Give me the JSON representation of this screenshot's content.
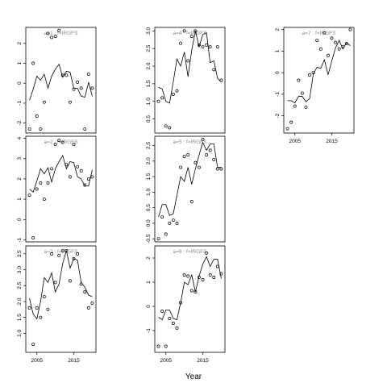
{
  "chart_data": {
    "type": "scatter",
    "xlabel": "Year",
    "x_ticks": [
      2005,
      2015
    ],
    "xlim": [
      2002,
      2021
    ],
    "panels": [
      {
        "title": "a=1 : f=IRGFS",
        "ylim": [
          -2.5,
          2.8
        ],
        "y_ticks": [
          -2,
          -1,
          0,
          1,
          2
        ],
        "line": {
          "x": [
            2003,
            2004,
            2005,
            2006,
            2007,
            2008,
            2009,
            2010,
            2011,
            2012,
            2013,
            2014,
            2015,
            2016,
            2017,
            2018,
            2019,
            2020
          ],
          "y": [
            -0.85,
            -0.3,
            0.35,
            0.15,
            0.45,
            -0.25,
            0.35,
            0.7,
            0.95,
            0.3,
            0.6,
            0.55,
            -0.25,
            -0.25,
            -0.65,
            -0.7,
            0.05,
            -0.65
          ]
        },
        "points": {
          "x": [
            2003,
            2004,
            2005,
            2006,
            2007,
            2008,
            2009,
            2010,
            2011,
            2012,
            2013,
            2014,
            2015,
            2016,
            2017,
            2018,
            2019,
            2020
          ],
          "y": [
            -2.3,
            1.0,
            -1.65,
            -2.3,
            -0.95,
            2.5,
            2.3,
            2.35,
            2.65,
            0.4,
            0.4,
            -0.95,
            -0.3,
            0.05,
            -0.25,
            -2.3,
            0.45,
            -0.25
          ]
        }
      },
      {
        "title": "a=4 : f=IRGFS",
        "ylim": [
          0.1,
          3.1
        ],
        "y_ticks": [
          0.5,
          1.0,
          1.5,
          2.0,
          2.5,
          3.0
        ],
        "line": {
          "x": [
            2003,
            2004,
            2005,
            2006,
            2007,
            2008,
            2009,
            2010,
            2011,
            2012,
            2013,
            2014,
            2015,
            2016,
            2017,
            2018,
            2019,
            2020
          ],
          "y": [
            1.4,
            1.35,
            1.0,
            0.95,
            1.55,
            2.2,
            2.0,
            2.4,
            1.7,
            2.45,
            3.0,
            2.55,
            2.9,
            2.95,
            2.1,
            2.15,
            1.65,
            1.55
          ]
        },
        "points": {
          "x": [
            2003,
            2004,
            2005,
            2006,
            2007,
            2008,
            2009,
            2010,
            2011,
            2012,
            2013,
            2014,
            2015,
            2016,
            2017,
            2018,
            2019,
            2020
          ],
          "y": [
            1.0,
            1.1,
            0.3,
            0.25,
            1.2,
            1.3,
            2.65,
            3.0,
            2.15,
            2.85,
            3.0,
            2.6,
            2.55,
            2.6,
            2.55,
            1.9,
            2.55,
            1.6
          ]
        }
      },
      {
        "title": "a=7 : f=IRGFS",
        "ylim": [
          -2.8,
          2.1
        ],
        "y_ticks": [
          -2,
          -1,
          0,
          1,
          2
        ],
        "line": {
          "x": [
            2003,
            2004,
            2005,
            2006,
            2007,
            2008,
            2009,
            2010,
            2011,
            2012,
            2013,
            2014,
            2015,
            2016,
            2017,
            2018,
            2019,
            2020
          ],
          "y": [
            -1.3,
            -1.3,
            -1.4,
            -1.1,
            -1.1,
            -1.35,
            -1.2,
            -0.05,
            0.25,
            0.2,
            0.6,
            -0.1,
            0.55,
            1.15,
            1.5,
            1.1,
            1.4,
            1.25
          ]
        },
        "points": {
          "x": [
            2003,
            2004,
            2005,
            2006,
            2007,
            2008,
            2009,
            2010,
            2011,
            2012,
            2013,
            2014,
            2015,
            2016,
            2017,
            2018,
            2019,
            2020
          ],
          "y": [
            -2.6,
            -2.3,
            -1.55,
            -0.35,
            -0.95,
            -1.6,
            -0.1,
            0.0,
            1.5,
            1.1,
            1.85,
            0.8,
            1.6,
            1.4,
            1.1,
            1.2,
            1.35,
            2.0
          ]
        }
      },
      {
        "title": "a=2 : f=IRGFS",
        "ylim": [
          -1.1,
          4.1
        ],
        "y_ticks": [
          -1,
          0,
          1,
          2,
          3,
          4
        ],
        "line": {
          "x": [
            2003,
            2004,
            2005,
            2006,
            2007,
            2008,
            2009,
            2010,
            2011,
            2012,
            2013,
            2014,
            2015,
            2016,
            2017,
            2018,
            2019,
            2020
          ],
          "y": [
            1.5,
            1.35,
            1.9,
            2.5,
            2.25,
            2.55,
            1.85,
            2.5,
            2.85,
            3.15,
            2.5,
            2.85,
            2.8,
            2.1,
            2.0,
            1.65,
            1.65,
            2.45
          ]
        },
        "points": {
          "x": [
            2003,
            2004,
            2005,
            2006,
            2007,
            2008,
            2009,
            2010,
            2011,
            2012,
            2013,
            2014,
            2015,
            2016,
            2017,
            2018,
            2019,
            2020
          ],
          "y": [
            1.2,
            -0.9,
            1.5,
            1.8,
            1.0,
            1.8,
            2.5,
            3.7,
            3.9,
            3.8,
            2.7,
            2.1,
            3.7,
            2.6,
            2.4,
            1.7,
            2.0,
            2.1
          ]
        }
      },
      {
        "title": "a=5 : f=IRGFS",
        "ylim": [
          -0.6,
          2.8
        ],
        "y_ticks": [
          -0.5,
          0.0,
          0.5,
          1.0,
          1.5,
          2.0,
          2.5
        ],
        "line": {
          "x": [
            2003,
            2004,
            2005,
            2006,
            2007,
            2008,
            2009,
            2010,
            2011,
            2012,
            2013,
            2014,
            2015,
            2016,
            2017,
            2018,
            2019,
            2020
          ],
          "y": [
            0.2,
            0.6,
            0.6,
            0.25,
            0.3,
            0.9,
            1.5,
            1.35,
            1.8,
            1.25,
            1.75,
            2.2,
            2.6,
            2.35,
            2.55,
            2.55,
            1.8,
            1.8
          ]
        },
        "points": {
          "x": [
            2003,
            2004,
            2005,
            2006,
            2007,
            2008,
            2009,
            2010,
            2011,
            2012,
            2013,
            2014,
            2015,
            2016,
            2017,
            2018,
            2019,
            2020
          ],
          "y": [
            -0.5,
            0.2,
            -0.35,
            0.0,
            0.1,
            0.0,
            1.8,
            2.15,
            2.2,
            0.7,
            1.95,
            1.8,
            2.7,
            2.2,
            2.35,
            2.05,
            1.75,
            1.75
          ]
        }
      },
      {
        "title": "a=3 : f=IRGFS",
        "ylim": [
          0.4,
          3.75
        ],
        "y_ticks": [
          1.0,
          1.5,
          2.0,
          2.5,
          3.0,
          3.5
        ],
        "line": {
          "x": [
            2003,
            2004,
            2005,
            2006,
            2007,
            2008,
            2009,
            2010,
            2011,
            2012,
            2013,
            2014,
            2015,
            2016,
            2017,
            2018,
            2019,
            2020
          ],
          "y": [
            2.1,
            1.6,
            1.45,
            2.0,
            2.75,
            2.6,
            2.9,
            2.3,
            2.55,
            3.2,
            3.6,
            3.05,
            3.35,
            3.3,
            2.6,
            2.45,
            2.2,
            2.15
          ]
        },
        "points": {
          "x": [
            2003,
            2004,
            2005,
            2006,
            2007,
            2008,
            2009,
            2010,
            2011,
            2012,
            2013,
            2014,
            2015,
            2016,
            2017,
            2018,
            2019,
            2020
          ],
          "y": [
            1.8,
            0.65,
            1.8,
            1.5,
            2.15,
            1.75,
            3.5,
            2.6,
            3.45,
            3.6,
            3.6,
            2.65,
            3.35,
            3.5,
            2.55,
            2.3,
            1.8,
            1.95
          ]
        }
      },
      {
        "title": "a=6 : f=IRGFS",
        "ylim": [
          -1.9,
          2.5
        ],
        "y_ticks": [
          -1,
          0,
          1,
          2
        ],
        "line": {
          "x": [
            2003,
            2004,
            2005,
            2006,
            2007,
            2008,
            2009,
            2010,
            2011,
            2012,
            2013,
            2014,
            2015,
            2016,
            2017,
            2018,
            2019,
            2020
          ],
          "y": [
            -0.45,
            -0.55,
            -0.15,
            -0.15,
            -0.5,
            -0.55,
            0.15,
            1.0,
            0.9,
            1.3,
            0.6,
            1.25,
            1.75,
            2.05,
            1.65,
            1.95,
            1.95,
            1.15
          ]
        },
        "points": {
          "x": [
            2003,
            2004,
            2005,
            2006,
            2007,
            2008,
            2009,
            2010,
            2011,
            2012,
            2013,
            2014,
            2015,
            2016,
            2017,
            2018,
            2019,
            2020
          ],
          "y": [
            -1.65,
            -0.2,
            -1.65,
            -0.5,
            -0.7,
            -0.9,
            0.15,
            1.3,
            1.25,
            0.65,
            0.6,
            1.2,
            1.1,
            2.2,
            1.3,
            1.2,
            1.65,
            1.35
          ]
        }
      }
    ]
  }
}
